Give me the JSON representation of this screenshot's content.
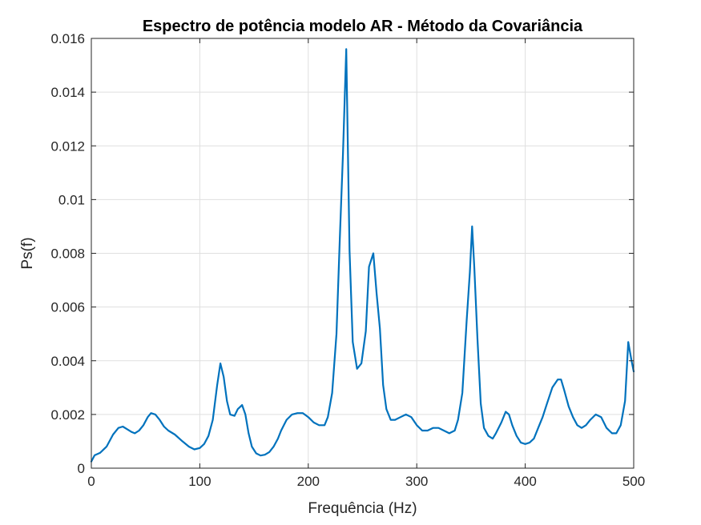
{
  "chart_data": {
    "type": "line",
    "title": "Espectro de potência modelo AR - Método da Covariância",
    "xlabel": "Frequência (Hz)",
    "ylabel": "Ps(f)",
    "xlim": [
      0,
      500
    ],
    "ylim": [
      0,
      0.016
    ],
    "xticks": [
      0,
      100,
      200,
      300,
      400,
      500
    ],
    "xtick_labels": [
      "0",
      "100",
      "200",
      "300",
      "400",
      "500"
    ],
    "yticks": [
      0,
      0.002,
      0.004,
      0.006,
      0.008,
      0.01,
      0.012,
      0.014,
      0.016
    ],
    "ytick_labels": [
      "0",
      "0.002",
      "0.004",
      "0.006",
      "0.008",
      "0.01",
      "0.012",
      "0.014",
      "0.016"
    ],
    "grid": true,
    "line_color": "#0072BD",
    "series": [
      {
        "x": [
          0,
          3,
          8,
          14,
          20,
          25,
          29,
          33,
          37,
          40,
          44,
          48,
          52,
          55,
          59,
          63,
          67,
          71,
          77,
          84,
          90,
          95,
          100,
          104,
          108,
          112,
          116,
          119,
          122,
          125,
          128,
          132,
          135,
          139,
          142,
          145,
          148,
          152,
          156,
          160,
          164,
          168,
          172,
          175,
          180,
          185,
          190,
          195,
          200,
          205,
          210,
          215,
          218,
          222,
          226,
          229,
          232,
          235,
          238,
          241,
          245,
          249,
          253,
          256,
          260,
          263,
          266,
          269,
          272,
          276,
          280,
          285,
          290,
          295,
          300,
          305,
          310,
          315,
          320,
          325,
          330,
          335,
          338,
          342,
          346,
          349,
          351,
          353,
          356,
          359,
          362,
          366,
          370,
          373,
          378,
          382,
          385,
          388,
          392,
          396,
          400,
          404,
          408,
          412,
          416,
          420,
          425,
          430,
          433,
          436,
          440,
          444,
          448,
          452,
          456,
          460,
          465,
          470,
          475,
          480,
          484,
          488,
          492,
          495,
          498,
          500
        ],
        "y": [
          0.00025,
          0.00048,
          0.00057,
          0.0008,
          0.00125,
          0.0015,
          0.00155,
          0.00145,
          0.00135,
          0.0013,
          0.0014,
          0.0016,
          0.0019,
          0.00205,
          0.002,
          0.0018,
          0.00155,
          0.0014,
          0.00125,
          0.001,
          0.0008,
          0.0007,
          0.00075,
          0.0009,
          0.0012,
          0.0018,
          0.0031,
          0.0039,
          0.0034,
          0.0025,
          0.002,
          0.00195,
          0.0022,
          0.00235,
          0.002,
          0.0013,
          0.0008,
          0.00055,
          0.00047,
          0.0005,
          0.0006,
          0.0008,
          0.0011,
          0.0014,
          0.0018,
          0.002,
          0.00205,
          0.00205,
          0.0019,
          0.0017,
          0.0016,
          0.0016,
          0.0019,
          0.0028,
          0.005,
          0.0085,
          0.0117,
          0.0156,
          0.0081,
          0.0047,
          0.0037,
          0.0039,
          0.0051,
          0.0075,
          0.008,
          0.0065,
          0.0052,
          0.0031,
          0.0022,
          0.0018,
          0.0018,
          0.0019,
          0.002,
          0.0019,
          0.0016,
          0.0014,
          0.0014,
          0.0015,
          0.0015,
          0.0014,
          0.0013,
          0.0014,
          0.0018,
          0.0028,
          0.0055,
          0.0073,
          0.009,
          0.0075,
          0.0048,
          0.0024,
          0.0015,
          0.0012,
          0.0011,
          0.0013,
          0.0017,
          0.0021,
          0.002,
          0.0016,
          0.0012,
          0.00095,
          0.0009,
          0.00095,
          0.0011,
          0.0015,
          0.0019,
          0.0024,
          0.003,
          0.0033,
          0.0033,
          0.0029,
          0.0023,
          0.0019,
          0.0016,
          0.0015,
          0.0016,
          0.0018,
          0.002,
          0.0019,
          0.0015,
          0.0013,
          0.0013,
          0.0016,
          0.0025,
          0.0047,
          0.004,
          0.0036
        ]
      }
    ]
  }
}
